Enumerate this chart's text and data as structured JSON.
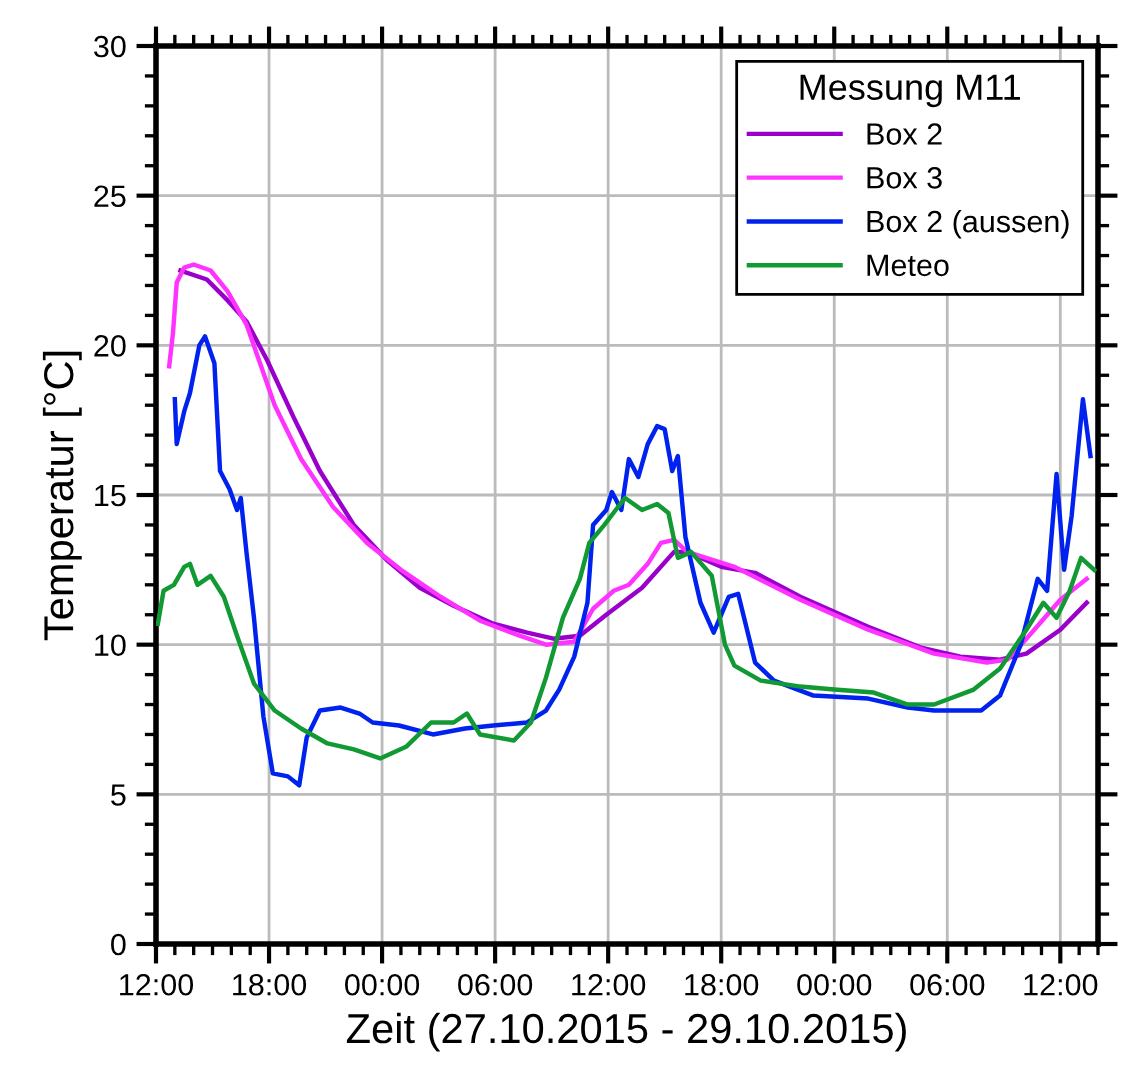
{
  "chart_data": {
    "type": "line",
    "xlabel": "Zeit (27.10.2015 - 29.10.2015)",
    "ylabel": "Temperatur [°C]",
    "legend_title": "Messung M11",
    "legend": "top right",
    "grid": true,
    "line_style": "solid",
    "marker": "none",
    "xlim": [
      "2015-10-27T12:00",
      "2015-10-29T14:00"
    ],
    "xticks": [
      {
        "value": "2015-10-27T12:00",
        "label": "12:00"
      },
      {
        "value": "2015-10-27T18:00",
        "label": "18:00"
      },
      {
        "value": "2015-10-28T00:00",
        "label": "00:00"
      },
      {
        "value": "2015-10-28T06:00",
        "label": "06:00"
      },
      {
        "value": "2015-10-28T12:00",
        "label": "12:00"
      },
      {
        "value": "2015-10-28T18:00",
        "label": "18:00"
      },
      {
        "value": "2015-10-29T00:00",
        "label": "00:00"
      },
      {
        "value": "2015-10-29T06:00",
        "label": "06:00"
      },
      {
        "value": "2015-10-29T12:00",
        "label": "12:00"
      }
    ],
    "ylim": [
      0,
      30
    ],
    "yticks": [
      0,
      5,
      10,
      15,
      20,
      25,
      30
    ],
    "series": [
      {
        "name": "Box 2",
        "color": "#9900cc",
        "x": [
          "2015-10-27T13:18",
          "2015-10-27T14:42",
          "2015-10-27T15:48",
          "2015-10-27T16:48",
          "2015-10-27T17:54",
          "2015-10-27T19:18",
          "2015-10-27T20:42",
          "2015-10-27T22:30",
          "2015-10-28T00:18",
          "2015-10-28T02:00",
          "2015-10-28T03:48",
          "2015-10-28T05:54",
          "2015-10-28T07:42",
          "2015-10-28T09:06",
          "2015-10-28T10:30",
          "2015-10-28T11:54",
          "2015-10-28T13:48",
          "2015-10-28T15:30",
          "2015-10-28T16:12",
          "2015-10-28T18:00",
          "2015-10-28T19:48",
          "2015-10-28T22:12",
          "2015-10-29T01:48",
          "2015-10-29T04:36",
          "2015-10-29T06:42",
          "2015-10-29T08:48",
          "2015-10-29T10:12",
          "2015-10-29T12:00",
          "2015-10-29T13:24"
        ],
        "values": [
          22.5,
          22.2,
          21.5,
          20.8,
          19.5,
          17.6,
          15.8,
          14.0,
          12.8,
          11.9,
          11.3,
          10.7,
          10.4,
          10.2,
          10.3,
          11.0,
          11.9,
          13.1,
          13.1,
          12.6,
          12.4,
          11.6,
          10.6,
          9.9,
          9.6,
          9.5,
          9.7,
          10.5,
          11.4
        ]
      },
      {
        "name": "Box 3",
        "color": "#ff33ff",
        "x": [
          "2015-10-27T12:42",
          "2015-10-27T12:54",
          "2015-10-27T13:06",
          "2015-10-27T13:30",
          "2015-10-27T14:00",
          "2015-10-27T14:54",
          "2015-10-27T15:48",
          "2015-10-27T16:48",
          "2015-10-27T18:18",
          "2015-10-27T19:42",
          "2015-10-27T21:24",
          "2015-10-27T23:12",
          "2015-10-28T01:00",
          "2015-10-28T03:06",
          "2015-10-28T05:12",
          "2015-10-28T07:18",
          "2015-10-28T08:42",
          "2015-10-28T10:12",
          "2015-10-28T11:12",
          "2015-10-28T12:18",
          "2015-10-28T13:06",
          "2015-10-28T14:06",
          "2015-10-28T14:48",
          "2015-10-28T15:30",
          "2015-10-28T16:12",
          "2015-10-28T18:42",
          "2015-10-28T22:12",
          "2015-10-29T01:48",
          "2015-10-29T05:18",
          "2015-10-29T08:06",
          "2015-10-29T09:12",
          "2015-10-29T10:12",
          "2015-10-29T12:00",
          "2015-10-29T13:24"
        ],
        "values": [
          19.3,
          20.4,
          22.1,
          22.6,
          22.7,
          22.5,
          21.8,
          20.7,
          18.0,
          16.2,
          14.6,
          13.4,
          12.5,
          11.6,
          10.8,
          10.3,
          10.0,
          10.1,
          11.2,
          11.8,
          12.0,
          12.7,
          13.4,
          13.5,
          13.1,
          12.6,
          11.5,
          10.5,
          9.7,
          9.4,
          9.5,
          10.2,
          11.5,
          12.2
        ]
      },
      {
        "name": "Box 2 (aussen)",
        "color": "#0022ee",
        "x": [
          "2015-10-27T13:00",
          "2015-10-27T13:06",
          "2015-10-27T13:30",
          "2015-10-27T13:48",
          "2015-10-27T14:18",
          "2015-10-27T14:36",
          "2015-10-27T15:06",
          "2015-10-27T15:24",
          "2015-10-27T15:54",
          "2015-10-27T16:18",
          "2015-10-27T16:30",
          "2015-10-27T16:48",
          "2015-10-27T17:12",
          "2015-10-27T17:42",
          "2015-10-27T18:12",
          "2015-10-27T19:00",
          "2015-10-27T19:36",
          "2015-10-27T20:00",
          "2015-10-27T20:42",
          "2015-10-27T21:48",
          "2015-10-27T22:48",
          "2015-10-27T23:30",
          "2015-10-28T00:54",
          "2015-10-28T02:42",
          "2015-10-28T04:24",
          "2015-10-28T05:54",
          "2015-10-28T07:42",
          "2015-10-28T08:42",
          "2015-10-28T09:24",
          "2015-10-28T10:12",
          "2015-10-28T10:54",
          "2015-10-28T11:12",
          "2015-10-28T11:54",
          "2015-10-28T12:12",
          "2015-10-28T12:42",
          "2015-10-28T13:06",
          "2015-10-28T13:36",
          "2015-10-28T14:06",
          "2015-10-28T14:36",
          "2015-10-28T15:00",
          "2015-10-28T15:24",
          "2015-10-28T15:42",
          "2015-10-28T16:06",
          "2015-10-28T16:54",
          "2015-10-28T17:36",
          "2015-10-28T18:24",
          "2015-10-28T18:54",
          "2015-10-28T19:48",
          "2015-10-28T20:48",
          "2015-10-28T22:54",
          "2015-10-29T01:48",
          "2015-10-29T03:54",
          "2015-10-29T05:18",
          "2015-10-29T07:48",
          "2015-10-29T08:48",
          "2015-10-29T09:54",
          "2015-10-29T10:48",
          "2015-10-29T11:18",
          "2015-10-29T11:48",
          "2015-10-29T12:12",
          "2015-10-29T12:36",
          "2015-10-29T13:12",
          "2015-10-29T13:36"
        ],
        "values": [
          18.2,
          16.7,
          17.8,
          18.4,
          20.0,
          20.3,
          19.4,
          15.8,
          15.2,
          14.5,
          14.9,
          13.1,
          10.9,
          7.6,
          5.7,
          5.6,
          5.3,
          6.9,
          7.8,
          7.9,
          7.7,
          7.4,
          7.3,
          7.0,
          7.2,
          7.3,
          7.4,
          7.8,
          8.5,
          9.6,
          11.4,
          14.0,
          14.5,
          15.1,
          14.5,
          16.2,
          15.6,
          16.7,
          17.3,
          17.2,
          15.8,
          16.3,
          13.6,
          11.4,
          10.4,
          11.6,
          11.7,
          9.4,
          8.8,
          8.3,
          8.2,
          7.9,
          7.8,
          7.8,
          8.3,
          10.0,
          12.2,
          11.8,
          15.7,
          12.5,
          14.3,
          18.2,
          16.3
        ]
      },
      {
        "name": "Meteo",
        "color": "#119933",
        "x": [
          "2015-10-27T12:06",
          "2015-10-27T12:24",
          "2015-10-27T12:57",
          "2015-10-27T13:30",
          "2015-10-27T13:48",
          "2015-10-27T14:12",
          "2015-10-27T14:54",
          "2015-10-27T15:36",
          "2015-10-27T16:18",
          "2015-10-27T17:12",
          "2015-10-27T18:18",
          "2015-10-27T19:42",
          "2015-10-27T21:06",
          "2015-10-27T22:30",
          "2015-10-27T23:54",
          "2015-10-28T01:18",
          "2015-10-28T02:36",
          "2015-10-28T03:48",
          "2015-10-28T04:30",
          "2015-10-28T05:12",
          "2015-10-28T07:00",
          "2015-10-28T07:54",
          "2015-10-28T08:42",
          "2015-10-28T09:36",
          "2015-10-28T10:30",
          "2015-10-28T11:00",
          "2015-10-28T11:48",
          "2015-10-28T12:24",
          "2015-10-28T12:54",
          "2015-10-28T13:48",
          "2015-10-28T14:36",
          "2015-10-28T15:12",
          "2015-10-28T15:42",
          "2015-10-28T16:24",
          "2015-10-28T17:30",
          "2015-10-28T18:12",
          "2015-10-28T18:42",
          "2015-10-28T20:06",
          "2015-10-28T22:12",
          "2015-10-29T00:00",
          "2015-10-29T02:06",
          "2015-10-29T03:54",
          "2015-10-29T05:18",
          "2015-10-29T07:24",
          "2015-10-29T08:48",
          "2015-10-29T10:12",
          "2015-10-29T11:06",
          "2015-10-29T11:48",
          "2015-10-29T12:30",
          "2015-10-29T13:06",
          "2015-10-29T13:48"
        ],
        "values": [
          10.7,
          11.8,
          12.0,
          12.6,
          12.7,
          12.0,
          12.3,
          11.6,
          10.3,
          8.7,
          7.8,
          7.2,
          6.7,
          6.5,
          6.2,
          6.6,
          7.4,
          7.4,
          7.7,
          7.0,
          6.8,
          7.4,
          8.9,
          10.9,
          12.2,
          13.4,
          14.0,
          14.5,
          14.9,
          14.5,
          14.7,
          14.4,
          12.9,
          13.1,
          12.3,
          10.0,
          9.3,
          8.8,
          8.6,
          8.5,
          8.4,
          8.0,
          8.0,
          8.5,
          9.2,
          10.5,
          11.4,
          10.9,
          11.8,
          12.9,
          12.5
        ]
      }
    ]
  }
}
